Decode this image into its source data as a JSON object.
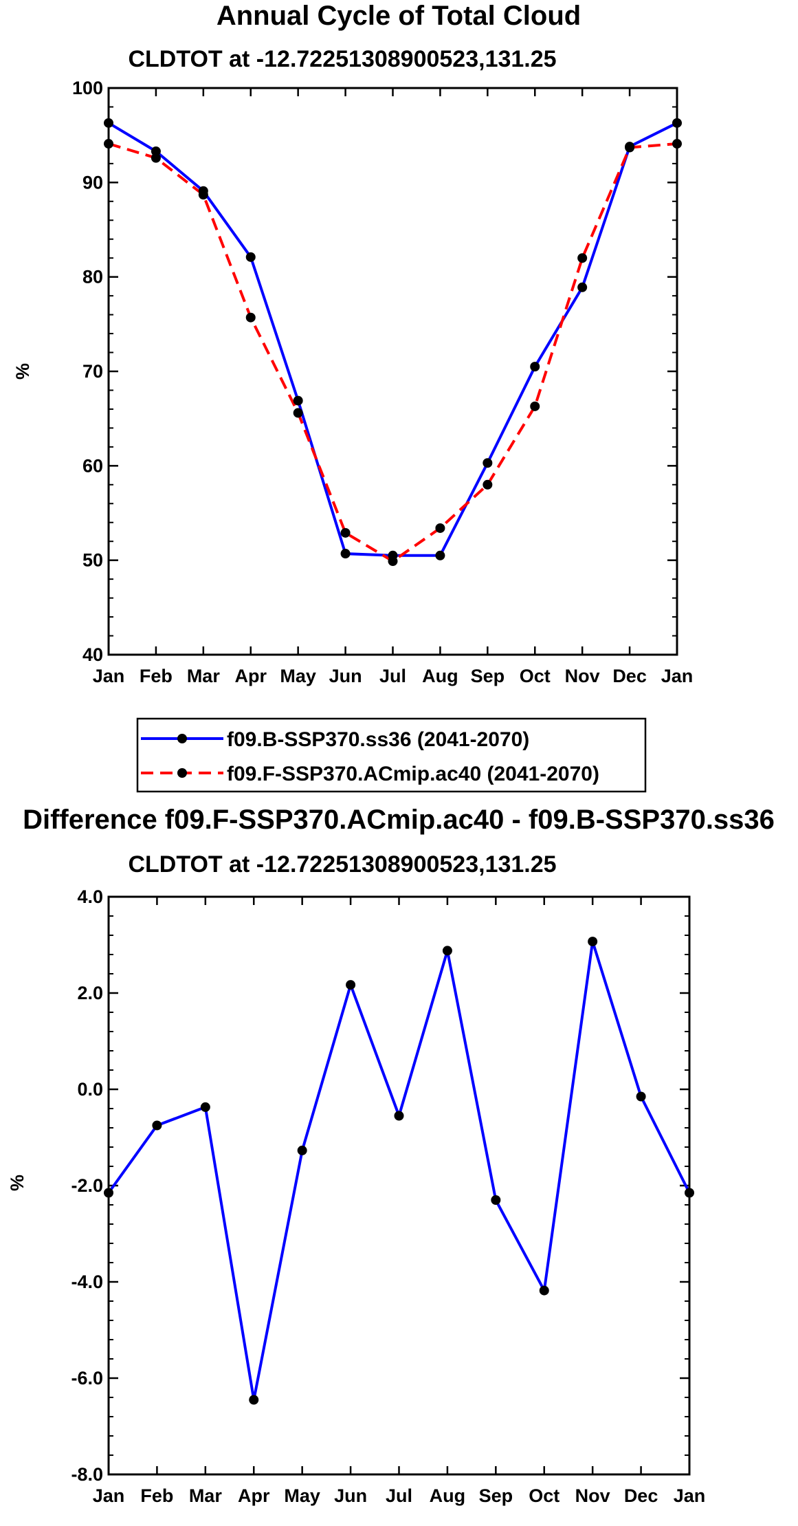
{
  "chart_data": [
    {
      "type": "line",
      "title": "Annual Cycle of Total Cloud",
      "subtitle": "CLDTOT at -12.72251308900523,131.25",
      "xlabel": "",
      "ylabel": "%",
      "categories": [
        "Jan",
        "Feb",
        "Mar",
        "Apr",
        "May",
        "Jun",
        "Jul",
        "Aug",
        "Sep",
        "Oct",
        "Nov",
        "Dec",
        "Jan"
      ],
      "ylim": [
        40,
        100
      ],
      "yticks": [
        40,
        50,
        60,
        70,
        80,
        90,
        100
      ],
      "ytick_labels": [
        "40",
        "50",
        "60",
        "70",
        "80",
        "90",
        "100"
      ],
      "grid": false,
      "legend_position": "bottom",
      "series": [
        {
          "name": "f09.B-SSP370.ss36 (2041-2070)",
          "color": "#0000ff",
          "dash": "solid",
          "values": [
            96.3,
            93.3,
            89.1,
            82.1,
            66.9,
            50.7,
            50.5,
            50.5,
            60.3,
            70.5,
            78.9,
            93.8,
            96.3
          ]
        },
        {
          "name": "f09.F-SSP370.ACmip.ac40 (2041-2070)",
          "color": "#ff0000",
          "dash": "dashed",
          "values": [
            94.1,
            92.6,
            88.7,
            75.7,
            65.6,
            52.9,
            49.9,
            53.4,
            58.0,
            66.3,
            82.0,
            93.7,
            94.1
          ]
        }
      ]
    },
    {
      "type": "line",
      "title": "Difference f09.F-SSP370.ACmip.ac40 - f09.B-SSP370.ss36",
      "subtitle": "CLDTOT at -12.72251308900523,131.25",
      "xlabel": "",
      "ylabel": "%",
      "categories": [
        "Jan",
        "Feb",
        "Mar",
        "Apr",
        "May",
        "Jun",
        "Jul",
        "Aug",
        "Sep",
        "Oct",
        "Nov",
        "Dec",
        "Jan"
      ],
      "ylim": [
        -8,
        4
      ],
      "yticks": [
        -8,
        -6,
        -4,
        -2,
        0,
        2,
        4
      ],
      "ytick_labels": [
        "-8.0",
        "-6.0",
        "-4.0",
        "-2.0",
        "0.0",
        "2.0",
        "4.0"
      ],
      "grid": false,
      "series": [
        {
          "name": "difference",
          "color": "#0000ff",
          "dash": "solid",
          "values": [
            -2.15,
            -0.75,
            -0.37,
            -6.45,
            -1.27,
            2.17,
            -0.55,
            2.88,
            -2.3,
            -4.18,
            3.07,
            -0.15,
            -2.15
          ]
        }
      ]
    }
  ]
}
